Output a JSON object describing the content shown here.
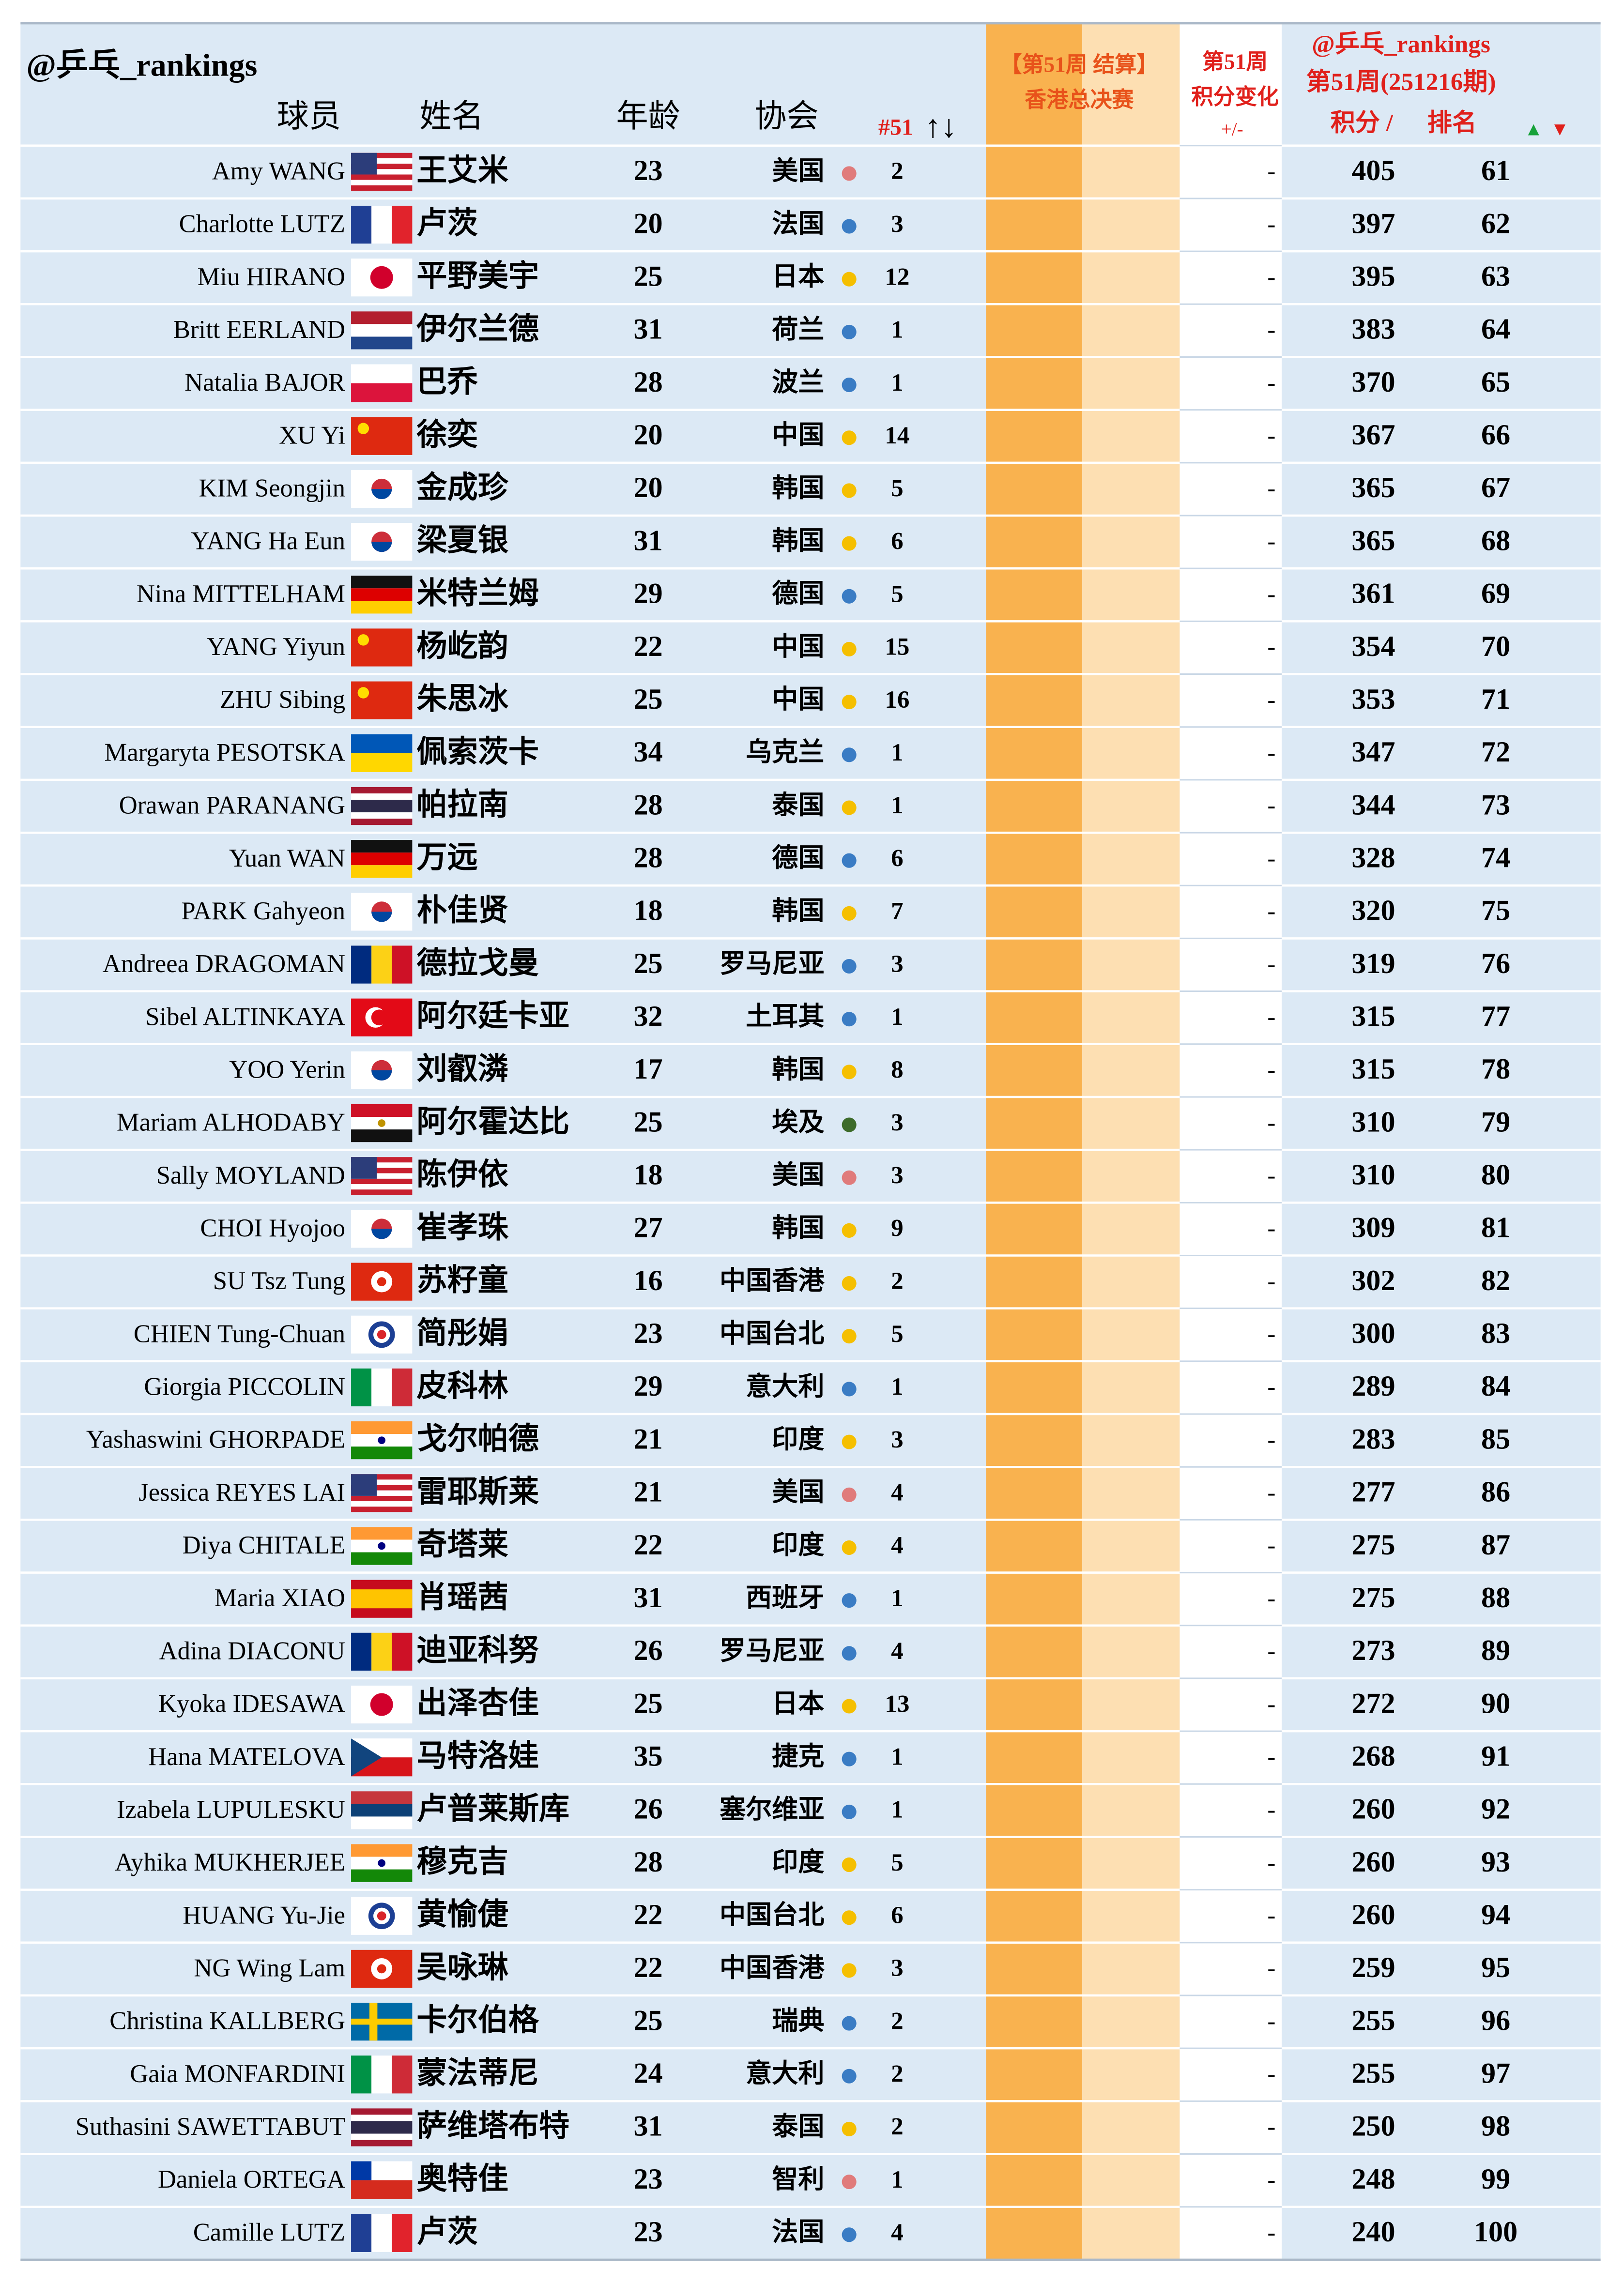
{
  "header": {
    "handle": "@乒乓_rankings",
    "col_player": "球员",
    "col_name": "姓名",
    "col_age": "年龄",
    "col_assoc": "协会",
    "col_week": "#51",
    "col_arrows": "↑↓",
    "event_line1": "【第51周 结算】",
    "event_line2": "香港总决赛",
    "change_line1": "第51周",
    "change_line2": "积分变化",
    "change_line3": "+/-",
    "right_handle": "@乒乓_rankings",
    "right_week": "第51周(251216期)",
    "col_points": "积分 /",
    "col_rank": "排名",
    "up": "▲",
    "down": "▼"
  },
  "table": {
    "rows": [
      [
        "Amy WANG",
        "王艾米",
        23,
        "美国",
        2,
        "-",
        405,
        61
      ],
      [
        "Charlotte LUTZ",
        "卢茨",
        20,
        "法国",
        3,
        "-",
        397,
        62
      ],
      [
        "Miu HIRANO",
        "平野美宇",
        25,
        "日本",
        12,
        "-",
        395,
        63
      ],
      [
        "Britt EERLAND",
        "伊尔兰德",
        31,
        "荷兰",
        1,
        "-",
        383,
        64
      ],
      [
        "Natalia BAJOR",
        "巴乔",
        28,
        "波兰",
        1,
        "-",
        370,
        65
      ],
      [
        "XU Yi",
        "徐奕",
        20,
        "中国",
        14,
        "-",
        367,
        66
      ],
      [
        "KIM Seongjin",
        "金成珍",
        20,
        "韩国",
        5,
        "-",
        365,
        67
      ],
      [
        "YANG Ha Eun",
        "梁夏银",
        31,
        "韩国",
        6,
        "-",
        365,
        68
      ],
      [
        "Nina MITTELHAM",
        "米特兰姆",
        29,
        "德国",
        5,
        "-",
        361,
        69
      ],
      [
        "YANG Yiyun",
        "杨屹韵",
        22,
        "中国",
        15,
        "-",
        354,
        70
      ],
      [
        "ZHU Sibing",
        "朱思冰",
        25,
        "中国",
        16,
        "-",
        353,
        71
      ],
      [
        "Margaryta PESOTSKA",
        "佩索茨卡",
        34,
        "乌克兰",
        1,
        "-",
        347,
        72
      ],
      [
        "Orawan PARANANG",
        "帕拉南",
        28,
        "泰国",
        1,
        "-",
        344,
        73
      ],
      [
        "Yuan WAN",
        "万远",
        28,
        "德国",
        6,
        "-",
        328,
        74
      ],
      [
        "PARK Gahyeon",
        "朴佳贤",
        18,
        "韩国",
        7,
        "-",
        320,
        75
      ],
      [
        "Andreea DRAGOMAN",
        "德拉戈曼",
        25,
        "罗马尼亚",
        3,
        "-",
        319,
        76
      ],
      [
        "Sibel ALTINKAYA",
        "阿尔廷卡亚",
        32,
        "土耳其",
        1,
        "-",
        315,
        77
      ],
      [
        "YOO Yerin",
        "刘叡潾",
        17,
        "韩国",
        8,
        "-",
        315,
        78
      ],
      [
        "Mariam ALHODABY",
        "阿尔霍达比",
        25,
        "埃及",
        3,
        "-",
        310,
        79
      ],
      [
        "Sally MOYLAND",
        "陈伊依",
        18,
        "美国",
        3,
        "-",
        310,
        80
      ],
      [
        "CHOI Hyojoo",
        "崔孝珠",
        27,
        "韩国",
        9,
        "-",
        309,
        81
      ],
      [
        "SU Tsz Tung",
        "苏籽童",
        16,
        "中国香港",
        2,
        "-",
        302,
        82
      ],
      [
        "CHIEN Tung-Chuan",
        "简彤娟",
        23,
        "中国台北",
        5,
        "-",
        300,
        83
      ],
      [
        "Giorgia PICCOLIN",
        "皮科林",
        29,
        "意大利",
        1,
        "-",
        289,
        84
      ],
      [
        "Yashaswini GHORPADE",
        "戈尔帕德",
        21,
        "印度",
        3,
        "-",
        283,
        85
      ],
      [
        "Jessica REYES LAI",
        "雷耶斯莱",
        21,
        "美国",
        4,
        "-",
        277,
        86
      ],
      [
        "Diya CHITALE",
        "奇塔莱",
        22,
        "印度",
        4,
        "-",
        275,
        87
      ],
      [
        "Maria XIAO",
        "肖瑶茜",
        31,
        "西班牙",
        1,
        "-",
        275,
        88
      ],
      [
        "Adina DIACONU",
        "迪亚科努",
        26,
        "罗马尼亚",
        4,
        "-",
        273,
        89
      ],
      [
        "Kyoka IDESAWA",
        "出泽杏佳",
        25,
        "日本",
        13,
        "-",
        272,
        90
      ],
      [
        "Hana MATELOVA",
        "马特洛娃",
        35,
        "捷克",
        1,
        "-",
        268,
        91
      ],
      [
        "Izabela LUPULESKU",
        "卢普莱斯库",
        26,
        "塞尔维亚",
        1,
        "-",
        260,
        92
      ],
      [
        "Ayhika MUKHERJEE",
        "穆克吉",
        28,
        "印度",
        5,
        "-",
        260,
        93
      ],
      [
        "HUANG Yu-Jie",
        "黄愉倢",
        22,
        "中国台北",
        6,
        "-",
        260,
        94
      ],
      [
        "NG Wing Lam",
        "吴咏琳",
        22,
        "中国香港",
        3,
        "-",
        259,
        95
      ],
      [
        "Christina KALLBERG",
        "卡尔伯格",
        25,
        "瑞典",
        2,
        "-",
        255,
        96
      ],
      [
        "Gaia MONFARDINI",
        "蒙法蒂尼",
        24,
        "意大利",
        2,
        "-",
        255,
        97
      ],
      [
        "Suthasini SAWETTABUT",
        "萨维塔布特",
        31,
        "泰国",
        2,
        "-",
        250,
        98
      ],
      [
        "Daniela ORTEGA",
        "奥特佳",
        23,
        "智利",
        1,
        "-",
        248,
        99
      ],
      [
        "Camille LUTZ",
        "卢茨",
        23,
        "法国",
        4,
        "-",
        240,
        100
      ]
    ]
  }
}
